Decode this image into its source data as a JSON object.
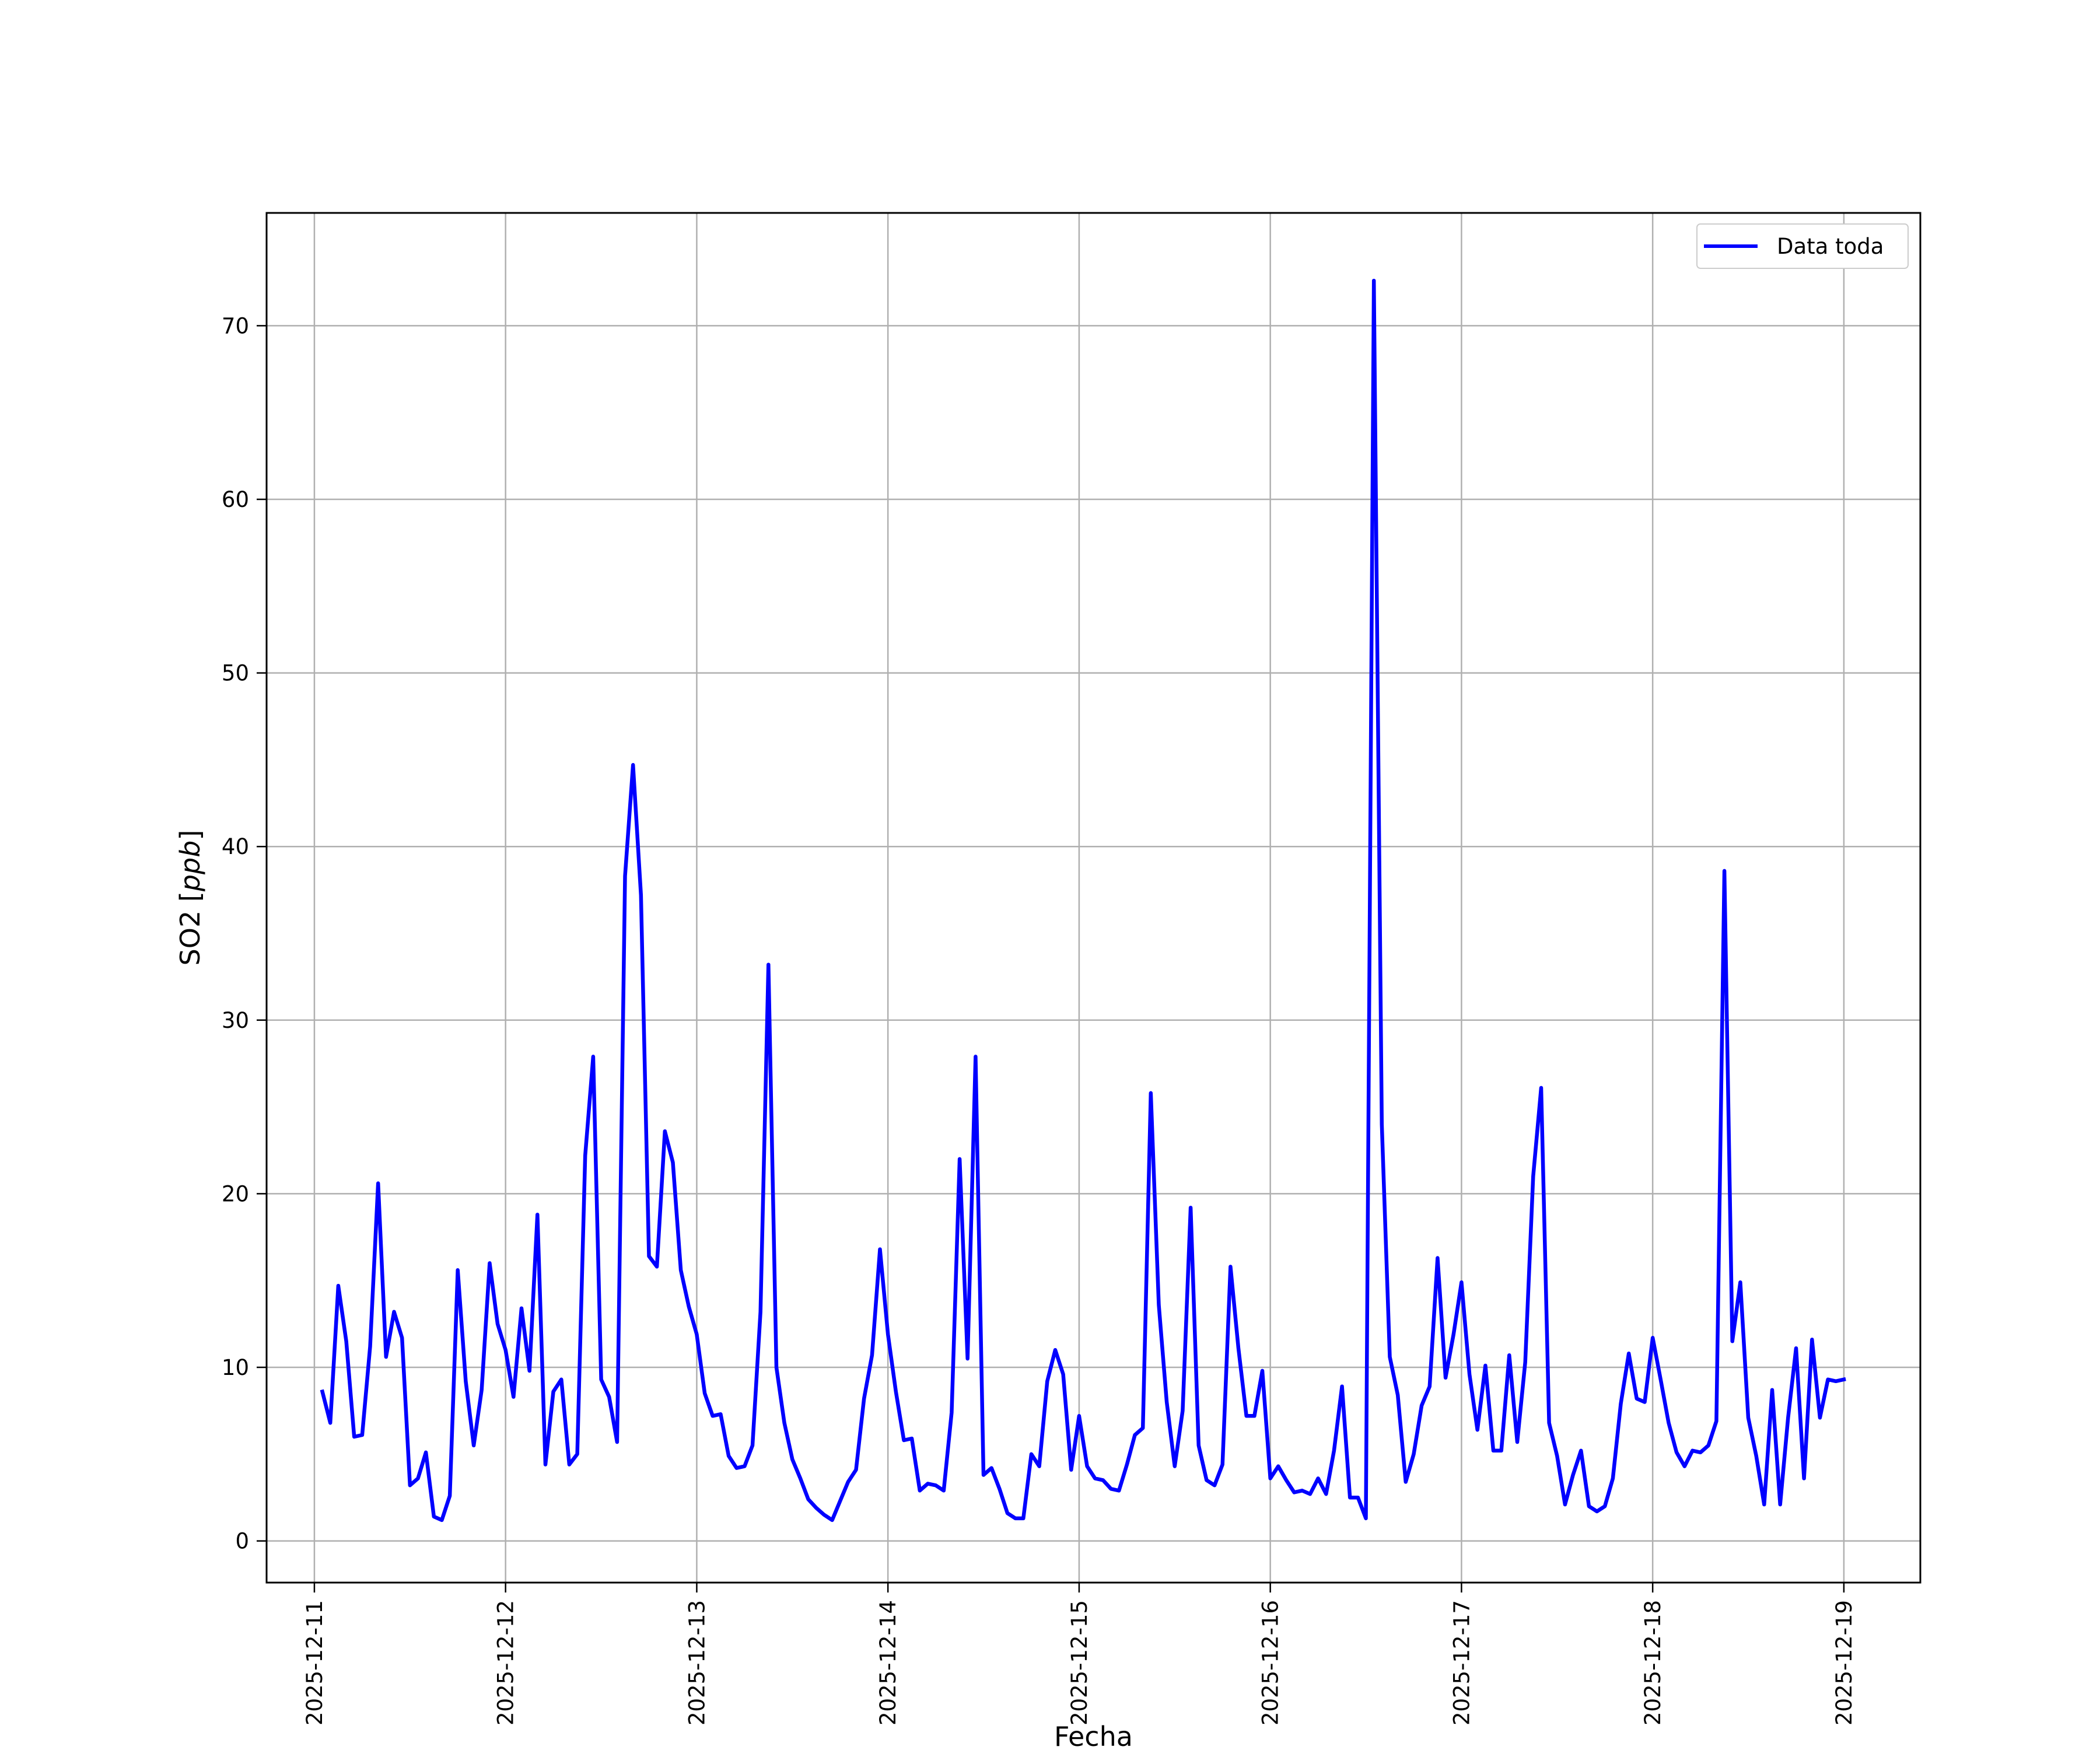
{
  "chart_data": {
    "type": "line",
    "title": "",
    "xlabel": "Fecha",
    "ylabel_text": "SO2 [",
    "ylabel_unit": "ppb",
    "ylabel_close": "]",
    "xlim_days": [
      -0.25,
      8.4
    ],
    "ylim": [
      -2.4,
      76.5
    ],
    "yticks": [
      0,
      10,
      20,
      30,
      40,
      50,
      60,
      70
    ],
    "xtick_labels": [
      "2025-12-11",
      "2025-12-12",
      "2025-12-13",
      "2025-12-14",
      "2025-12-15",
      "2025-12-16",
      "2025-12-17",
      "2025-12-18",
      "2025-12-19"
    ],
    "grid": true,
    "legend_position": "top-right",
    "line_color": "#0000ff",
    "series": [
      {
        "name": "Data toda",
        "x_start": "2025-12-11 01:00",
        "x_step_hours": 1,
        "values": [
          8.6,
          6.8,
          14.7,
          11.5,
          6.0,
          6.1,
          11.2,
          20.6,
          10.6,
          13.2,
          11.7,
          3.2,
          3.6,
          5.1,
          1.4,
          1.2,
          2.6,
          15.6,
          9.2,
          5.5,
          8.7,
          16.0,
          12.5,
          11.0,
          8.3,
          13.4,
          9.8,
          18.8,
          4.4,
          8.6,
          9.3,
          4.4,
          5.0,
          22.2,
          27.9,
          9.3,
          8.3,
          5.7,
          38.3,
          44.7,
          37.2,
          16.4,
          15.8,
          23.6,
          21.8,
          15.6,
          13.5,
          11.9,
          8.5,
          7.2,
          7.3,
          4.9,
          4.2,
          4.3,
          5.5,
          13.2,
          33.2,
          10.0,
          6.8,
          4.7,
          3.6,
          2.4,
          1.9,
          1.5,
          1.2,
          2.3,
          3.4,
          4.1,
          8.2,
          10.7,
          16.8,
          11.9,
          8.6,
          5.8,
          5.9,
          2.9,
          3.3,
          3.2,
          2.9,
          7.4,
          22.0,
          10.5,
          27.9,
          3.8,
          4.2,
          3.0,
          1.6,
          1.3,
          1.3,
          5.0,
          4.3,
          9.2,
          11.0,
          9.6,
          4.1,
          7.2,
          4.3,
          3.6,
          3.5,
          3.0,
          2.9,
          4.4,
          6.1,
          6.5,
          25.8,
          13.6,
          8.0,
          4.3,
          7.5,
          19.2,
          5.5,
          3.5,
          3.2,
          4.4,
          15.8,
          11.1,
          7.2,
          7.2,
          9.8,
          3.6,
          4.3,
          3.5,
          2.8,
          2.9,
          2.7,
          3.6,
          2.7,
          5.2,
          8.9,
          2.5,
          2.5,
          1.3,
          72.6,
          24.0,
          10.6,
          8.4,
          3.4,
          5.0,
          7.8,
          8.9,
          16.3,
          9.4,
          11.9,
          14.9,
          9.6,
          6.4,
          10.1,
          5.2,
          5.2,
          10.7,
          5.7,
          10.3,
          21.0,
          26.1,
          6.8,
          4.9,
          2.1,
          3.8,
          5.2,
          2.0,
          1.7,
          2.0,
          3.6,
          7.9,
          10.8,
          8.2,
          8.0,
          11.7,
          9.3,
          6.8,
          5.1,
          4.3,
          5.2,
          5.1,
          5.5,
          6.9,
          38.6,
          11.5,
          14.9,
          7.1,
          4.9,
          2.1,
          8.7,
          2.1,
          7.1,
          11.1,
          3.6,
          11.6,
          7.1,
          9.3,
          9.2,
          9.3
        ]
      }
    ]
  }
}
